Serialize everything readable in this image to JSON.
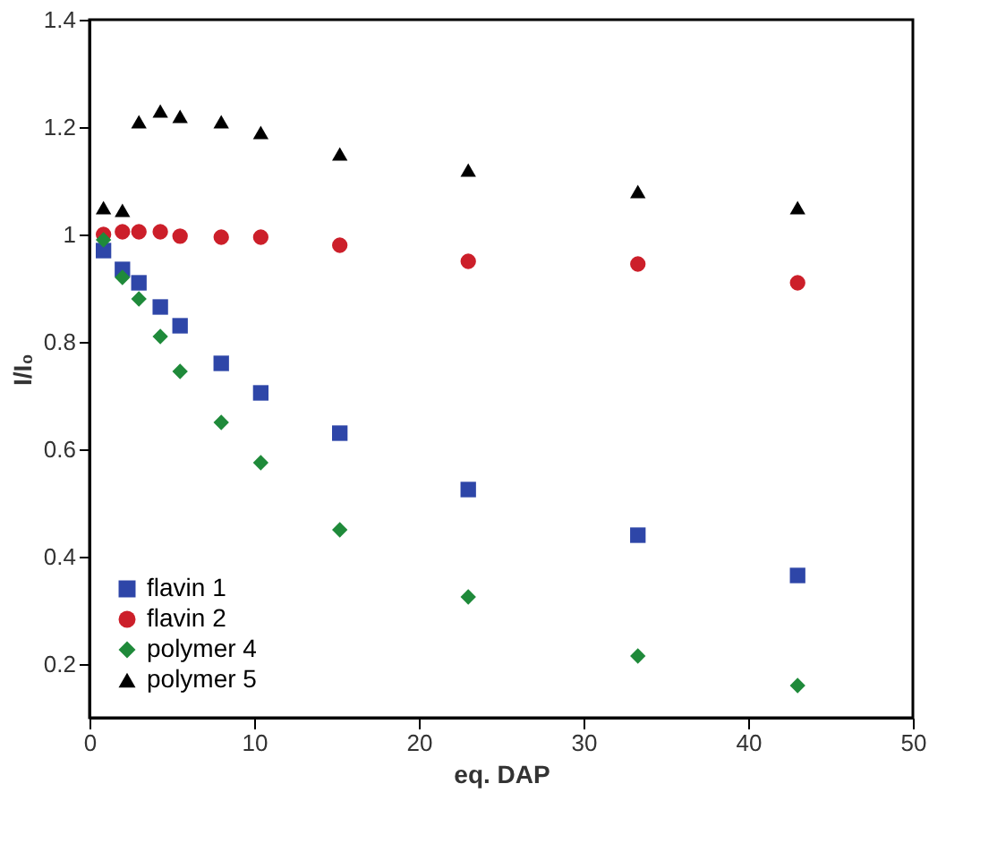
{
  "chart_data": {
    "type": "scatter",
    "xlabel": "eq. DAP",
    "ylabel": "I/I₀",
    "xlim": [
      0,
      50
    ],
    "ylim": [
      0.1,
      1.4
    ],
    "xticks": [
      0,
      10,
      20,
      30,
      40,
      50
    ],
    "yticks": [
      0.2,
      0.4,
      0.6,
      0.8,
      1,
      1.2,
      1.4
    ],
    "grid": false,
    "legend": "bottom left",
    "x": [
      0.85,
      2.0,
      3.0,
      4.3,
      5.5,
      8.0,
      10.4,
      15.2,
      23.0,
      33.3,
      43.0
    ],
    "series": [
      {
        "name": "flavin 1",
        "color": "#2e46a8",
        "marker": "square",
        "values": [
          0.97,
          0.935,
          0.91,
          0.865,
          0.83,
          0.76,
          0.705,
          0.63,
          0.525,
          0.44,
          0.365
        ]
      },
      {
        "name": "flavin 2",
        "color": "#cc1f2a",
        "marker": "circle",
        "values": [
          1.0,
          1.005,
          1.005,
          1.005,
          0.997,
          0.995,
          0.995,
          0.98,
          0.95,
          0.945,
          0.91
        ]
      },
      {
        "name": "polymer 4",
        "color": "#1f8a3a",
        "marker": "diamond",
        "values": [
          0.99,
          0.92,
          0.88,
          0.81,
          0.745,
          0.65,
          0.575,
          0.45,
          0.325,
          0.215,
          0.16
        ]
      },
      {
        "name": "polymer 5",
        "color": "#000000",
        "marker": "triangle",
        "values": [
          1.05,
          1.045,
          1.21,
          1.23,
          1.22,
          1.21,
          1.19,
          1.15,
          1.12,
          1.08,
          1.05
        ]
      }
    ]
  }
}
